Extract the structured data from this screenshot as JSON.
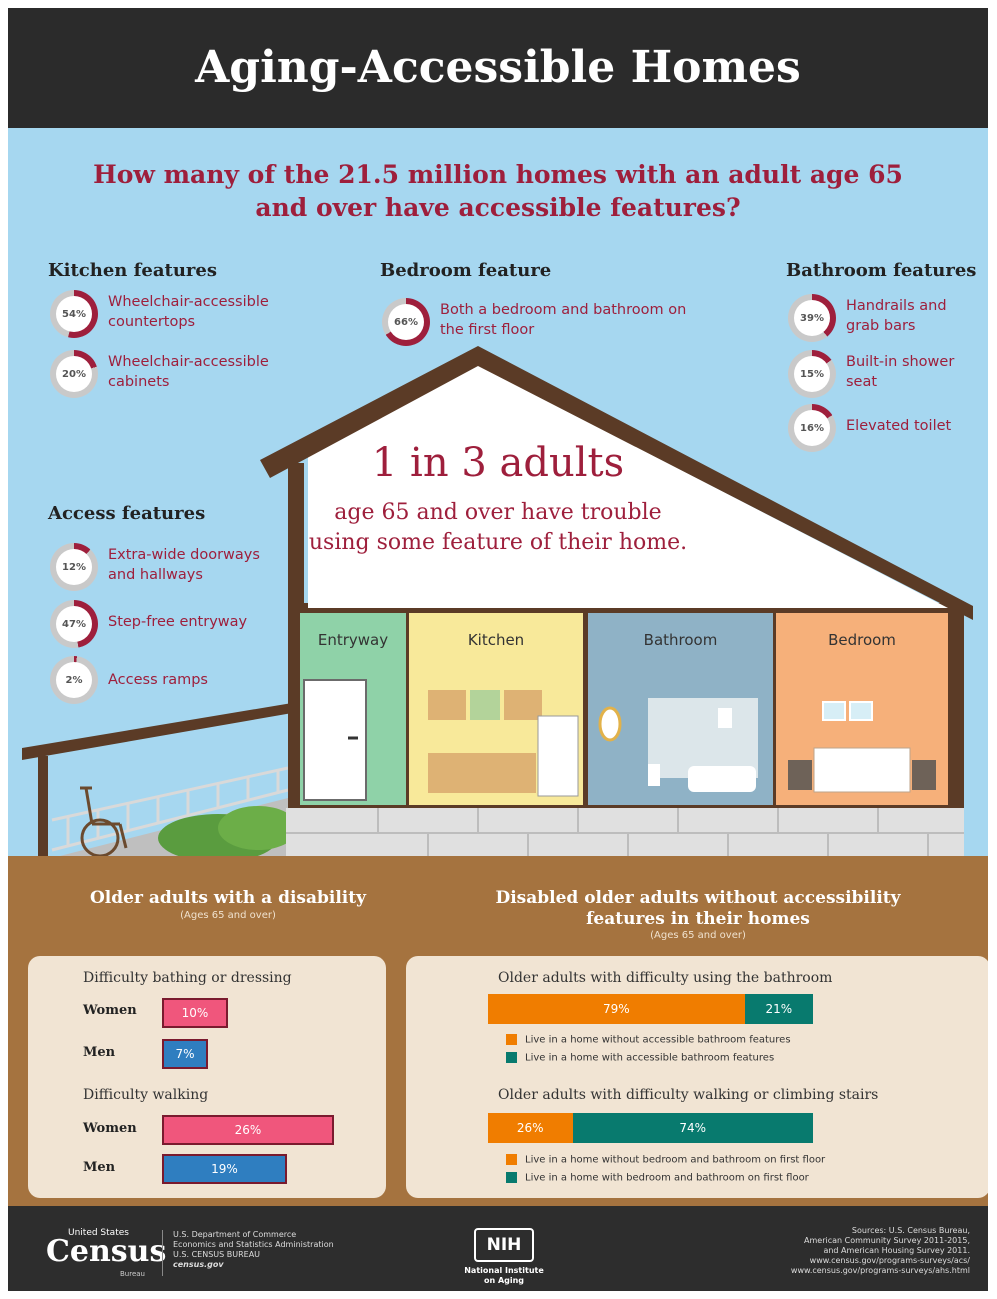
{
  "title": "Aging-Accessible Homes",
  "question": "How many of the 21.5 million homes with an adult age 65 and over have accessible features?",
  "colors": {
    "accent": "#9e1f3c",
    "sky": "#a6d7f0",
    "ground": "#a5733f",
    "pink": "#f0567c",
    "blue": "#2f7ec0",
    "orange": "#f07d00",
    "teal": "#087a6e"
  },
  "kitchen": {
    "heading": "Kitchen features",
    "items": [
      {
        "pct": "54%",
        "value": 54,
        "label": "Wheelchair-accessible countertops"
      },
      {
        "pct": "20%",
        "value": 20,
        "label": "Wheelchair-accessible cabinets"
      }
    ]
  },
  "bedroom": {
    "heading": "Bedroom feature",
    "items": [
      {
        "pct": "66%",
        "value": 66,
        "label": "Both a bedroom and bathroom on the first floor"
      }
    ]
  },
  "bathroom": {
    "heading": "Bathroom features",
    "items": [
      {
        "pct": "39%",
        "value": 39,
        "label": "Handrails and grab bars"
      },
      {
        "pct": "15%",
        "value": 15,
        "label": "Built-in shower seat"
      },
      {
        "pct": "16%",
        "value": 16,
        "label": "Elevated toilet"
      }
    ]
  },
  "access": {
    "heading": "Access features",
    "items": [
      {
        "pct": "12%",
        "value": 12,
        "label": "Extra-wide doorways and hallways"
      },
      {
        "pct": "47%",
        "value": 47,
        "label": "Step-free entryway"
      },
      {
        "pct": "2%",
        "value": 2,
        "label": "Access ramps"
      }
    ]
  },
  "house": {
    "headline": "1 in 3 adults",
    "subline": "age 65 and over have trouble using some feature of their home.",
    "rooms": [
      "Entryway",
      "Kitchen",
      "Bathroom",
      "Bedroom"
    ]
  },
  "disability": {
    "title": "Older adults with a disability",
    "subtitle": "(Ages 65 and over)",
    "groups": [
      {
        "label": "Difficulty bathing or dressing",
        "rows": [
          {
            "gender": "Women",
            "pct": "10%",
            "value": 10
          },
          {
            "gender": "Men",
            "pct": "7%",
            "value": 7
          }
        ]
      },
      {
        "label": "Difficulty walking",
        "rows": [
          {
            "gender": "Women",
            "pct": "26%",
            "value": 26
          },
          {
            "gender": "Men",
            "pct": "19%",
            "value": 19
          }
        ]
      }
    ]
  },
  "without": {
    "title": "Disabled older adults without accessibility features in their homes",
    "subtitle": "(Ages 65 and over)",
    "groups": [
      {
        "label": "Older adults with difficulty using the bathroom",
        "segments": [
          {
            "pct": "79%",
            "value": 79
          },
          {
            "pct": "21%",
            "value": 21
          }
        ],
        "legend": [
          "Live in a home without accessible bathroom features",
          "Live in a home with accessible bathroom features"
        ]
      },
      {
        "label": "Older adults with difficulty walking or climbing stairs",
        "segments": [
          {
            "pct": "26%",
            "value": 26
          },
          {
            "pct": "74%",
            "value": 74
          }
        ],
        "legend": [
          "Live in a home without bedroom and bathroom on first floor",
          "Live in a home with bedroom and bathroom on first floor"
        ]
      }
    ]
  },
  "footer": {
    "census_top": "United States",
    "census_word": "Census",
    "census_bureau": "Bureau",
    "dept_lines": [
      "U.S. Department of Commerce",
      "Economics and Statistics Administration",
      "U.S. CENSUS BUREAU",
      "census.gov"
    ],
    "nih_logo": "NIH",
    "nih_lines": [
      "National Institute",
      "on Aging"
    ],
    "source_lines": [
      "Sources: U.S. Census Bureau,",
      "American Community Survey 2011-2015,",
      "and American Housing Survey 2011.",
      "www.census.gov/programs-surveys/acs/",
      "www.census.gov/programs-surveys/ahs.html"
    ]
  }
}
